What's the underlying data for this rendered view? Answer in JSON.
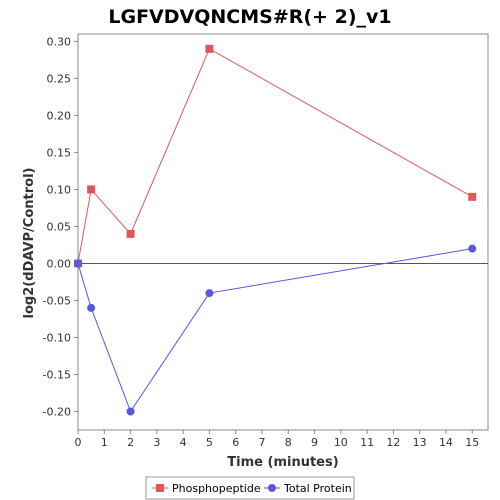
{
  "chart_data": {
    "type": "line",
    "title": "LGFVDVQNCMS#R(+ 2)_v1",
    "xlabel": "Time (minutes)",
    "ylabel": "log2(dDAVP/Control)",
    "xlim": [
      0,
      15.6
    ],
    "ylim": [
      -0.225,
      0.31
    ],
    "xticks": [
      0,
      1,
      2,
      3,
      4,
      5,
      6,
      7,
      8,
      9,
      10,
      11,
      12,
      13,
      14,
      15
    ],
    "xtick_labels": [
      "0",
      "1",
      "2",
      "3",
      "4",
      "5",
      "6",
      "7",
      "8",
      "9",
      "10",
      "11",
      "12",
      "13",
      "14",
      "15"
    ],
    "yticks": [
      -0.2,
      -0.15,
      -0.1,
      -0.05,
      0.0,
      0.05,
      0.1,
      0.15,
      0.2,
      0.25,
      0.3
    ],
    "ytick_labels": [
      "-0.20",
      "-0.15",
      "-0.10",
      "-0.05",
      "0.00",
      "0.05",
      "0.10",
      "0.15",
      "0.20",
      "0.25",
      "0.30"
    ],
    "grid": false,
    "zero_line": true,
    "legend_position": "bottom",
    "series": [
      {
        "name": "Phosphopeptide",
        "color": "#e05757",
        "marker": "square",
        "x": [
          0,
          0.5,
          2,
          5,
          15
        ],
        "y": [
          0.0,
          0.1,
          0.04,
          0.29,
          0.09
        ]
      },
      {
        "name": "Total Protein",
        "color": "#5757e0",
        "marker": "circle",
        "x": [
          0,
          0.5,
          2,
          5,
          15
        ],
        "y": [
          0.0,
          -0.06,
          -0.2,
          -0.04,
          0.02
        ]
      }
    ]
  }
}
